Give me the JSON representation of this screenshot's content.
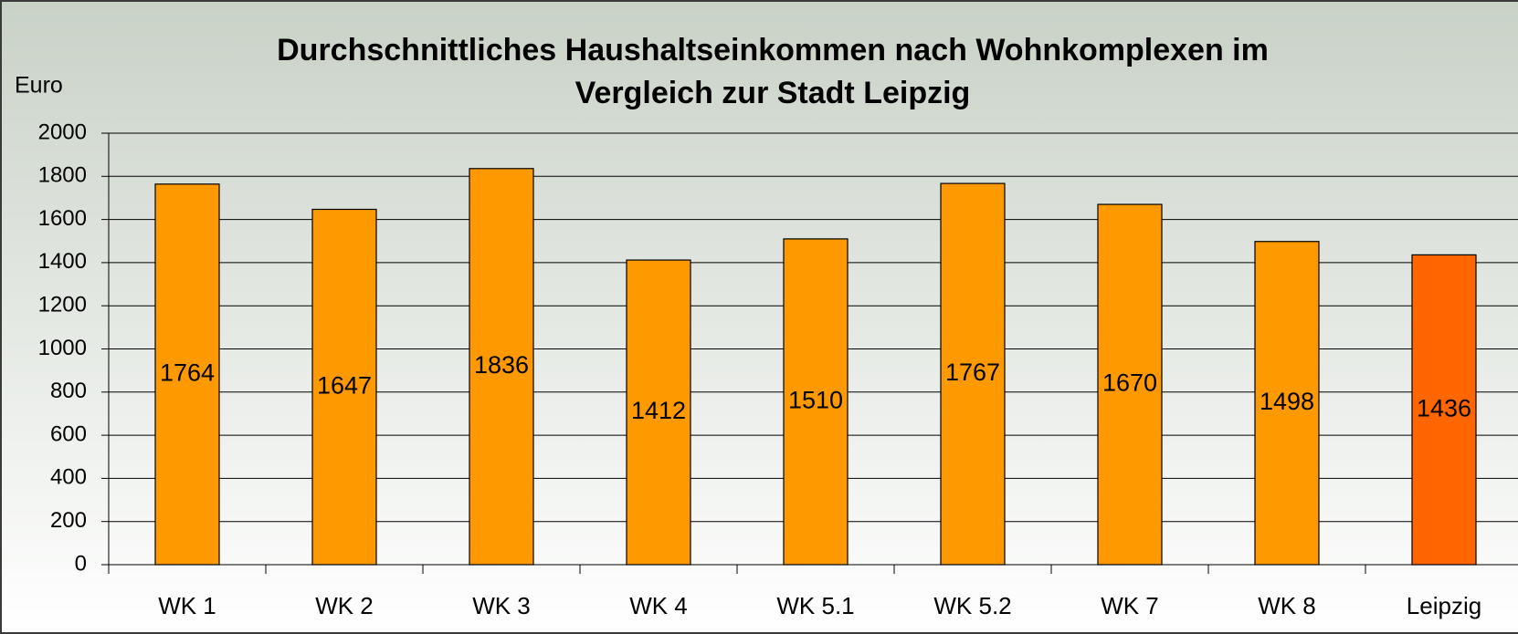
{
  "chart_data": {
    "type": "bar",
    "title": [
      "Durchschnittliches Haushaltseinkommen nach Wohnkomplexen im",
      "Vergleich zur Stadt Leipzig"
    ],
    "y_label": "Euro",
    "categories": [
      "WK 1",
      "WK 2",
      "WK 3",
      "WK 4",
      "WK 5.1",
      "WK 5.2",
      "WK 7",
      "WK 8",
      "Leipzig"
    ],
    "values": [
      1764,
      1647,
      1836,
      1412,
      1510,
      1767,
      1670,
      1498,
      1436
    ],
    "colors": [
      "#ff9900",
      "#ff9900",
      "#ff9900",
      "#ff9900",
      "#ff9900",
      "#ff9900",
      "#ff9900",
      "#ff9900",
      "#ff6600"
    ],
    "ylim": [
      0,
      2000
    ],
    "yticks": [
      0,
      200,
      400,
      600,
      800,
      1000,
      1200,
      1400,
      1600,
      1800,
      2000
    ],
    "grid": true
  }
}
